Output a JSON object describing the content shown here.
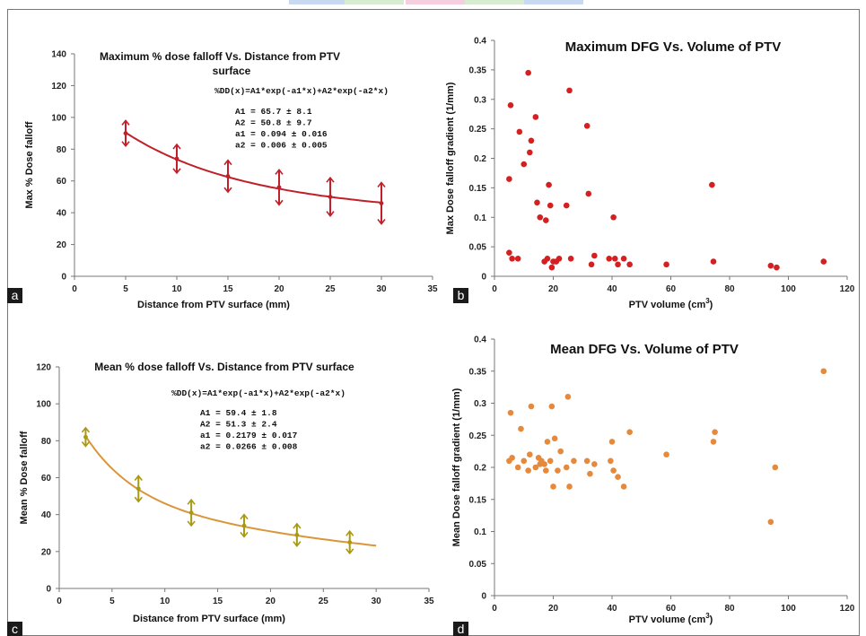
{
  "figure": {
    "top_strip_colors": [
      "#c9d9f2",
      "#d8ecd2",
      "#f5cfe0",
      "#d8ecd2",
      "#c9d9f2"
    ],
    "frame_color": "#777777"
  },
  "chart_data": [
    {
      "panel_label": "a",
      "type": "scatter",
      "title": "Maximum % dose falloff Vs. Distance from PTV surface",
      "equation": "%DD(x)=A1*exp(-a1*x)+A2*exp(-a2*x)",
      "params": [
        "A1 = 65.7 ± 8.1",
        "A2 = 50.8 ± 9.7",
        "a1 = 0.094 ± 0.016",
        "a2 = 0.006 ± 0.005"
      ],
      "xlabel": "Distance from PTV surface (mm)",
      "ylabel": "Max % Dose falloff",
      "xlim": [
        0,
        35
      ],
      "ylim": [
        0,
        140
      ],
      "xticks": [
        0,
        5,
        10,
        15,
        20,
        25,
        30,
        35
      ],
      "yticks": [
        0,
        20,
        40,
        60,
        80,
        100,
        120,
        140
      ],
      "color": "#c0202a",
      "x": [
        5,
        10,
        15,
        20,
        25,
        30
      ],
      "y": [
        90,
        74,
        63,
        56,
        50,
        46
      ],
      "errors": [
        8,
        9,
        10,
        11,
        12,
        13
      ],
      "fit": {
        "A1": 65.7,
        "a1": 0.094,
        "A2": 50.8,
        "a2": 0.006,
        "x_range": [
          5,
          30
        ]
      }
    },
    {
      "panel_label": "b",
      "type": "scatter",
      "title": "Maximum DFG Vs. Volume of PTV",
      "xlabel": "PTV volume (cm",
      "xlabel_sup": "3",
      "xlabel_end": ")",
      "ylabel": "Max Dose falloff gradient (1/mm)",
      "xlim": [
        0,
        120
      ],
      "ylim": [
        0,
        0.4
      ],
      "xticks": [
        0,
        20,
        40,
        60,
        80,
        100,
        120
      ],
      "yticks": [
        "0",
        "0.05",
        "0.1",
        "0.15",
        "0.2",
        "0.25",
        "0.3",
        "0.35",
        "0.4"
      ],
      "color": "#d42020",
      "points": [
        [
          5,
          0.04
        ],
        [
          5,
          0.165
        ],
        [
          5.5,
          0.29
        ],
        [
          6,
          0.03
        ],
        [
          8,
          0.03
        ],
        [
          8.5,
          0.245
        ],
        [
          10,
          0.19
        ],
        [
          11.5,
          0.345
        ],
        [
          12,
          0.21
        ],
        [
          12.5,
          0.23
        ],
        [
          14,
          0.27
        ],
        [
          14.5,
          0.125
        ],
        [
          15.5,
          0.1
        ],
        [
          17,
          0.025
        ],
        [
          17.5,
          0.095
        ],
        [
          18,
          0.03
        ],
        [
          18.5,
          0.155
        ],
        [
          19,
          0.12
        ],
        [
          19.5,
          0.015
        ],
        [
          20,
          0.025
        ],
        [
          21,
          0.025
        ],
        [
          22,
          0.03
        ],
        [
          24.5,
          0.12
        ],
        [
          25.5,
          0.315
        ],
        [
          26,
          0.03
        ],
        [
          31.5,
          0.255
        ],
        [
          32,
          0.14
        ],
        [
          33,
          0.02
        ],
        [
          34,
          0.035
        ],
        [
          39,
          0.03
        ],
        [
          40.5,
          0.1
        ],
        [
          41,
          0.03
        ],
        [
          42,
          0.02
        ],
        [
          44,
          0.03
        ],
        [
          46,
          0.02
        ],
        [
          58.5,
          0.02
        ],
        [
          74,
          0.155
        ],
        [
          74.5,
          0.025
        ],
        [
          94,
          0.018
        ],
        [
          96,
          0.015
        ],
        [
          112,
          0.025
        ]
      ]
    },
    {
      "panel_label": "c",
      "type": "scatter",
      "title": "Mean % dose falloff Vs. Distance from PTV surface",
      "equation": "%DD(x)=A1*exp(-a1*x)+A2*exp(-a2*x)",
      "params": [
        "A1 = 59.4 ± 1.8",
        "A2 = 51.3 ± 2.4",
        "a1 = 0.2179 ± 0.017",
        "a2 = 0.0266 ± 0.008"
      ],
      "xlabel": "Distance from PTV surface (mm)",
      "ylabel": "Mean % Dose falloff",
      "xlim": [
        0,
        35
      ],
      "ylim": [
        0,
        120
      ],
      "xticks": [
        0,
        5,
        10,
        15,
        20,
        25,
        30,
        35
      ],
      "yticks": [
        0,
        20,
        40,
        60,
        80,
        100,
        120
      ],
      "color": "#d9963a",
      "marker_color": "#a79a10",
      "x": [
        2.5,
        7.5,
        12.5,
        17.5,
        22.5,
        27.5
      ],
      "y": [
        82,
        54,
        41,
        34,
        29,
        25
      ],
      "errors": [
        5,
        7,
        7,
        6,
        6,
        6
      ],
      "fit": {
        "A1": 59.4,
        "a1": 0.2179,
        "A2": 51.3,
        "a2": 0.0266,
        "x_range": [
          2.5,
          30
        ]
      }
    },
    {
      "panel_label": "d",
      "type": "scatter",
      "title": "Mean DFG Vs. Volume of PTV",
      "xlabel": "PTV volume (cm",
      "xlabel_sup": "3",
      "xlabel_end": ")",
      "ylabel": "Mean Dose falloff gradient (1/mm)",
      "xlim": [
        0,
        120
      ],
      "ylim": [
        0,
        0.4
      ],
      "xticks": [
        0,
        20,
        40,
        60,
        80,
        100,
        120
      ],
      "yticks": [
        "0",
        "0.05",
        "0.1",
        "0.15",
        "0.2",
        "0.25",
        "0.3",
        "0.35",
        "0.4"
      ],
      "color": "#e58a3c",
      "points": [
        [
          5,
          0.21
        ],
        [
          5.5,
          0.285
        ],
        [
          6,
          0.215
        ],
        [
          8,
          0.2
        ],
        [
          9,
          0.26
        ],
        [
          10,
          0.21
        ],
        [
          11.5,
          0.195
        ],
        [
          12,
          0.22
        ],
        [
          12.5,
          0.295
        ],
        [
          14,
          0.2
        ],
        [
          15,
          0.215
        ],
        [
          15.5,
          0.205
        ],
        [
          16,
          0.21
        ],
        [
          17,
          0.205
        ],
        [
          17.5,
          0.195
        ],
        [
          18,
          0.24
        ],
        [
          19,
          0.21
        ],
        [
          19.5,
          0.295
        ],
        [
          20,
          0.17
        ],
        [
          20.5,
          0.245
        ],
        [
          21.5,
          0.195
        ],
        [
          22.5,
          0.225
        ],
        [
          24.5,
          0.2
        ],
        [
          25,
          0.31
        ],
        [
          25.5,
          0.17
        ],
        [
          27,
          0.21
        ],
        [
          31.5,
          0.21
        ],
        [
          32.5,
          0.19
        ],
        [
          34,
          0.205
        ],
        [
          39.5,
          0.21
        ],
        [
          40,
          0.24
        ],
        [
          40.5,
          0.195
        ],
        [
          42,
          0.185
        ],
        [
          44,
          0.17
        ],
        [
          46,
          0.255
        ],
        [
          58.5,
          0.22
        ],
        [
          74.5,
          0.24
        ],
        [
          75,
          0.255
        ],
        [
          94,
          0.115
        ],
        [
          95.5,
          0.2
        ],
        [
          112,
          0.35
        ]
      ]
    }
  ]
}
